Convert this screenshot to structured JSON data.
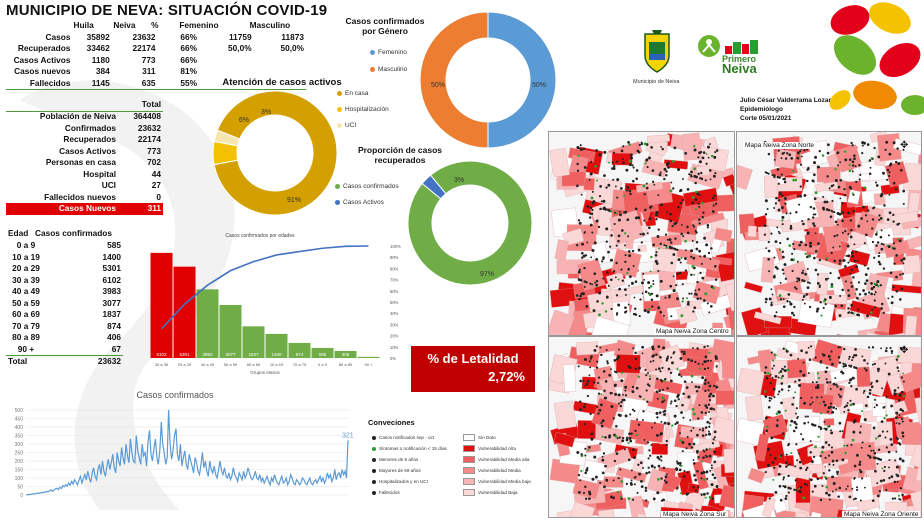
{
  "title": "MUNICIPIO DE NEVA: SITUACIÓN COVID-19",
  "summary": {
    "headers": [
      "",
      "Huila",
      "Neiva",
      "%",
      "Femenino",
      "Masculino"
    ],
    "rows": [
      {
        "label": "Casos",
        "huila": "35892",
        "neiva": "23632",
        "pct": "66%",
        "fem": "11759",
        "masc": "11873"
      },
      {
        "label": "Recuperados",
        "huila": "33462",
        "neiva": "22174",
        "pct": "66%",
        "fem": "50,0%",
        "masc": "50,0%"
      },
      {
        "label": "Casos Activos",
        "huila": "1180",
        "neiva": "773",
        "pct": "66%",
        "fem": "",
        "masc": ""
      },
      {
        "label": "Casos nuevos",
        "huila": "384",
        "neiva": "311",
        "pct": "81%",
        "fem": "",
        "masc": ""
      },
      {
        "label": "Fallecidos",
        "huila": "1145",
        "neiva": "635",
        "pct": "55%",
        "fem": "",
        "masc": ""
      }
    ]
  },
  "totals": {
    "header": "Total",
    "rows": [
      {
        "label": "Población de Neiva",
        "value": "364408"
      },
      {
        "label": "Confirmados",
        "value": "23632"
      },
      {
        "label": "Recuperados",
        "value": "22174"
      },
      {
        "label": "Casos Activos",
        "value": "773"
      },
      {
        "label": "Personas en casa",
        "value": "702"
      },
      {
        "label": "Hospital",
        "value": "44"
      },
      {
        "label": "UCI",
        "value": "27"
      },
      {
        "label": "Fallecidos nuevos",
        "value": "0"
      },
      {
        "label": "Casos Nuevos",
        "value": "311"
      }
    ]
  },
  "age_table": {
    "headers": [
      "Edad",
      "Casos confirmados"
    ],
    "rows": [
      {
        "age": "0 a 9",
        "value": "585"
      },
      {
        "age": "10 a 19",
        "value": "1400"
      },
      {
        "age": "20 a 29",
        "value": "5301"
      },
      {
        "age": "30 a 39",
        "value": "6102"
      },
      {
        "age": "40 a 49",
        "value": "3983"
      },
      {
        "age": "50 a 59",
        "value": "3077"
      },
      {
        "age": "60 a 69",
        "value": "1837"
      },
      {
        "age": "70 a 79",
        "value": "874"
      },
      {
        "age": "80 a 89",
        "value": "406"
      },
      {
        "age": "90 +",
        "value": "67"
      },
      {
        "age": "Total",
        "value": "23632"
      }
    ]
  },
  "active_care": {
    "title": "Atención de casos activos",
    "legend": [
      "En casa",
      "Hospitalización",
      "UCI"
    ],
    "labels": [
      "91%",
      "6%",
      "3%"
    ],
    "colors": [
      "#d4a000",
      "#f2c200",
      "#f6e7b0"
    ]
  },
  "gender": {
    "title_line1": "Casos confirmados",
    "title_line2": "por Género",
    "legend": [
      "Femenino",
      "Masculino"
    ],
    "labels": [
      "50%",
      "50%"
    ],
    "colors": [
      "#5b9bd5",
      "#ed7d31"
    ]
  },
  "recovered": {
    "title_line1": "Proporción de casos",
    "title_line2": "recuperados",
    "legend": [
      "Casos confirmados",
      "Casos Activos"
    ],
    "labels": [
      "97%",
      "3%"
    ],
    "colors": [
      "#70ad47",
      "#4472c4"
    ]
  },
  "pareto": {
    "title": "Casos confirmados por edades",
    "xlabel": "Grupos etarios",
    "y2ticks": [
      "100%",
      "90%",
      "80%",
      "70%",
      "60%",
      "50%",
      "40%",
      "30%",
      "20%",
      "10%",
      "0%"
    ]
  },
  "lethality": {
    "label": "% de Letalidad",
    "value": "2,72%"
  },
  "timeseries": {
    "title": "Casos confirmados",
    "yticks": [
      "500",
      "450",
      "400",
      "350",
      "300",
      "250",
      "200",
      "150",
      "100",
      "50",
      "0"
    ],
    "last_label": "321"
  },
  "conventions": {
    "title": "Conveciones",
    "left": [
      {
        "label": "Casos notificados sep - oct",
        "color": "#222222"
      },
      {
        "label": "Síntomas o notificación < 15 días",
        "color": "#2e9e2e"
      },
      {
        "label": "Menores de 6 años",
        "color": "#222222"
      },
      {
        "label": "Mayores de 59 años",
        "color": "#222222"
      },
      {
        "label": "Hospitalizados y en UCI",
        "color": "#222222"
      },
      {
        "label": "Fallecidos",
        "color": "#222222"
      }
    ],
    "right": [
      {
        "label": "Sin Dato",
        "color": "#ffffff"
      },
      {
        "label": "Vulnerabilidad Alta",
        "color": "#e01010"
      },
      {
        "label": "Vulnerabilidad Media alta",
        "color": "#f06060"
      },
      {
        "label": "Vulnerabilidad Media",
        "color": "#f58a8a"
      },
      {
        "label": "Vulnerabilidad Media baja",
        "color": "#f8b4b4"
      },
      {
        "label": "Vulnerabilidad Baja",
        "color": "#fbd8d8"
      }
    ]
  },
  "header_right": {
    "municipio": "Municipio de Neiva",
    "brand_line1": "Primero",
    "brand_line2": "Neiva",
    "author": "Julio César Valderrama Lozano",
    "role": "Epidemiólogo",
    "cutoff": "Corte 05/01/2021"
  },
  "maps": {
    "centro": "Mapa Neiva Zona Centro",
    "norte": "Mapa Neiva Zona Norte",
    "sur": "Mapa Neiva Zona Sur",
    "oriente": "Mapa Neiva Zona Oriente"
  },
  "chart_data": [
    {
      "type": "bar",
      "title": "Casos confirmados por edades",
      "xlabel": "Grupos etarios",
      "categories": [
        "30 a 39",
        "20 a 29",
        "40 a 49",
        "50 a 59",
        "60 a 69",
        "10 a 19",
        "70 a 79",
        "0 a 9",
        "80 a 89",
        "90 +"
      ],
      "values": [
        6102,
        5301,
        3983,
        3077,
        1837,
        1400,
        874,
        585,
        406,
        67
      ],
      "bar_colors": [
        "#e00000",
        "#e00000",
        "#70ad47",
        "#70ad47",
        "#70ad47",
        "#70ad47",
        "#70ad47",
        "#70ad47",
        "#70ad47",
        "#70ad47"
      ],
      "cumulative_pct": [
        26,
        48,
        65,
        78,
        86,
        92,
        95,
        98,
        99.7,
        100
      ],
      "y2lim": [
        0,
        100
      ]
    },
    {
      "type": "pie",
      "title": "Atención de casos activos",
      "categories": [
        "En casa",
        "Hospitalización",
        "UCI"
      ],
      "values": [
        91,
        6,
        3
      ]
    },
    {
      "type": "pie",
      "title": "Casos confirmados por Género",
      "categories": [
        "Femenino",
        "Masculino"
      ],
      "values": [
        50,
        50
      ]
    },
    {
      "type": "pie",
      "title": "Proporción de casos recuperados",
      "categories": [
        "Casos confirmados",
        "Casos Activos"
      ],
      "values": [
        97,
        3
      ]
    },
    {
      "type": "line",
      "title": "Casos confirmados",
      "ylim": [
        0,
        500
      ],
      "values": [
        2,
        3,
        1,
        5,
        4,
        8,
        6,
        10,
        12,
        9,
        15,
        11,
        18,
        14,
        22,
        19,
        25,
        30,
        22,
        28,
        35,
        40,
        31,
        45,
        38,
        55,
        48,
        60,
        52,
        70,
        58,
        80,
        65,
        90,
        75,
        60,
        85,
        110,
        70,
        95,
        120,
        88,
        140,
        100,
        75,
        130,
        160,
        110,
        90,
        150,
        180,
        120,
        200,
        140,
        110,
        170,
        210,
        150,
        190,
        240,
        160,
        130,
        250,
        200,
        170,
        280,
        220,
        180,
        300,
        230,
        190,
        330,
        250,
        200,
        190,
        350,
        260,
        220,
        180,
        300,
        230,
        250,
        170,
        310,
        380,
        240,
        200,
        270,
        330,
        220,
        180,
        260,
        430,
        300,
        250,
        180,
        220,
        500,
        300,
        210,
        260,
        350,
        390,
        240,
        200,
        300,
        170,
        220,
        260,
        180,
        150,
        240,
        200,
        170,
        130,
        220,
        190,
        140,
        120,
        180,
        250,
        160,
        200,
        140,
        110,
        200,
        150,
        130,
        170,
        120,
        100,
        150,
        200,
        140,
        120,
        160,
        110,
        100,
        130,
        90,
        110,
        160,
        120,
        100,
        80,
        130,
        110,
        90,
        140,
        100,
        120,
        160,
        130,
        100,
        90,
        110,
        140,
        100,
        90,
        120,
        80,
        100,
        70,
        90,
        110,
        80,
        60,
        100,
        80,
        120,
        90,
        70,
        60,
        90,
        110,
        70,
        80,
        100,
        60,
        80,
        120,
        100,
        70,
        60,
        90,
        80,
        60,
        70,
        100,
        90,
        70,
        60,
        80,
        100,
        70,
        60,
        80,
        90,
        70,
        90,
        110,
        80,
        100,
        70,
        90,
        130,
        100,
        120,
        80,
        100,
        150,
        90,
        120,
        130,
        100,
        150,
        120,
        140,
        100,
        321
      ]
    }
  ]
}
